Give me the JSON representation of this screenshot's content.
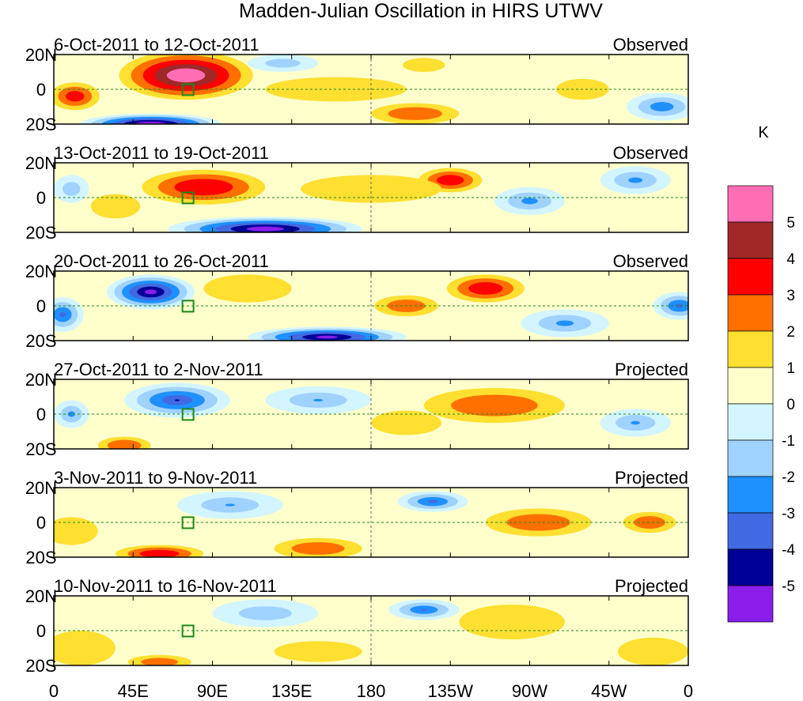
{
  "chart_data": {
    "type": "heatmap",
    "title": "Madden-Julian Oscillation in HIRS UTWV",
    "colorbar": {
      "unit": "K",
      "ticks": [
        "5",
        "4",
        "3",
        "2",
        "1",
        "0",
        "-1",
        "-2",
        "-3",
        "-4",
        "-5"
      ],
      "colors": [
        "#FF6EB4",
        "#A02828",
        "#FF0000",
        "#FF7000",
        "#FFDF30",
        "#FFFFCC",
        "#D2F5FF",
        "#A0D2FF",
        "#1E90FF",
        "#4169E1",
        "#000096",
        "#8A1EEA"
      ]
    },
    "xticks": [
      {
        "lon": 0,
        "label": "0"
      },
      {
        "lon": 45,
        "label": "45E"
      },
      {
        "lon": 90,
        "label": "90E"
      },
      {
        "lon": 135,
        "label": "135E"
      },
      {
        "lon": 180,
        "label": "180"
      },
      {
        "lon": 225,
        "label": "135W"
      },
      {
        "lon": 270,
        "label": "90W"
      },
      {
        "lon": 315,
        "label": "45W"
      },
      {
        "lon": 360,
        "label": "0"
      }
    ],
    "yticks": [
      {
        "lat": 20,
        "label": "20N"
      },
      {
        "lat": 0,
        "label": "0"
      },
      {
        "lat": -20,
        "label": "20S"
      }
    ],
    "panels": [
      {
        "period": "6-Oct-2011 to 12-Oct-2011",
        "type": "Observed",
        "blobs": [
          [
            75,
            8,
            38,
            14,
            5.6
          ],
          [
            12,
            -4,
            14,
            8,
            3.2
          ],
          [
            55,
            -20,
            40,
            6,
            -5.5
          ],
          [
            160,
            0,
            40,
            7,
            1.8
          ],
          [
            205,
            -14,
            25,
            6,
            2.6
          ],
          [
            210,
            14,
            12,
            4,
            1.8
          ],
          [
            130,
            15,
            20,
            5,
            -1
          ],
          [
            345,
            -10,
            20,
            8,
            -2
          ],
          [
            300,
            0,
            15,
            6,
            1.5
          ],
          [
            250,
            -5,
            25,
            6,
            0.8
          ]
        ]
      },
      {
        "period": "13-Oct-2011 to 19-Oct-2011",
        "type": "Observed",
        "blobs": [
          [
            85,
            6,
            35,
            10,
            3.8
          ],
          [
            225,
            10,
            18,
            7,
            3.5
          ],
          [
            120,
            -18,
            55,
            7,
            -5.2
          ],
          [
            35,
            -5,
            14,
            7,
            1.6
          ],
          [
            270,
            -2,
            20,
            8,
            -1.6
          ],
          [
            330,
            10,
            20,
            8,
            -1.5
          ],
          [
            180,
            5,
            40,
            8,
            1
          ],
          [
            10,
            5,
            10,
            8,
            -1
          ]
        ]
      },
      {
        "period": "20-Oct-2011 to 26-Oct-2011",
        "type": "Observed",
        "blobs": [
          [
            55,
            8,
            25,
            10,
            -4.8
          ],
          [
            245,
            10,
            22,
            8,
            3.6
          ],
          [
            200,
            0,
            18,
            6,
            2.5
          ],
          [
            155,
            -18,
            45,
            6,
            -4.8
          ],
          [
            5,
            -5,
            12,
            10,
            -2.5
          ],
          [
            355,
            0,
            15,
            8,
            -2.5
          ],
          [
            110,
            10,
            25,
            8,
            1
          ],
          [
            290,
            -10,
            25,
            8,
            -1.5
          ]
        ]
      },
      {
        "period": "27-Oct-2011 to 2-Nov-2011",
        "type": "Projected",
        "blobs": [
          [
            70,
            8,
            30,
            10,
            -3.2
          ],
          [
            40,
            -18,
            15,
            5,
            2.8
          ],
          [
            250,
            5,
            40,
            10,
            2.6
          ],
          [
            200,
            -5,
            20,
            7,
            1.2
          ],
          [
            150,
            8,
            30,
            8,
            -1.2
          ],
          [
            330,
            -5,
            20,
            8,
            -1.3
          ],
          [
            10,
            0,
            10,
            8,
            -1.5
          ]
        ]
      },
      {
        "period": "3-Nov-2011 to 9-Nov-2011",
        "type": "Projected",
        "blobs": [
          [
            60,
            -18,
            25,
            5,
            3.6
          ],
          [
            150,
            -15,
            25,
            6,
            2.5
          ],
          [
            215,
            12,
            20,
            6,
            -2.5
          ],
          [
            275,
            0,
            30,
            8,
            2.5
          ],
          [
            338,
            0,
            15,
            6,
            2.5
          ],
          [
            100,
            10,
            30,
            8,
            -1.2
          ],
          [
            10,
            -5,
            15,
            8,
            1.5
          ]
        ]
      },
      {
        "period": "10-Nov-2011 to 16-Nov-2011",
        "type": "Projected",
        "blobs": [
          [
            60,
            -18,
            18,
            4,
            2.4
          ],
          [
            210,
            12,
            20,
            6,
            -2.3
          ],
          [
            15,
            -10,
            20,
            10,
            1.8
          ],
          [
            260,
            5,
            30,
            10,
            1.5
          ],
          [
            340,
            -12,
            20,
            8,
            1.8
          ],
          [
            120,
            10,
            30,
            8,
            -1
          ],
          [
            150,
            -12,
            25,
            6,
            1.2
          ]
        ]
      }
    ]
  }
}
